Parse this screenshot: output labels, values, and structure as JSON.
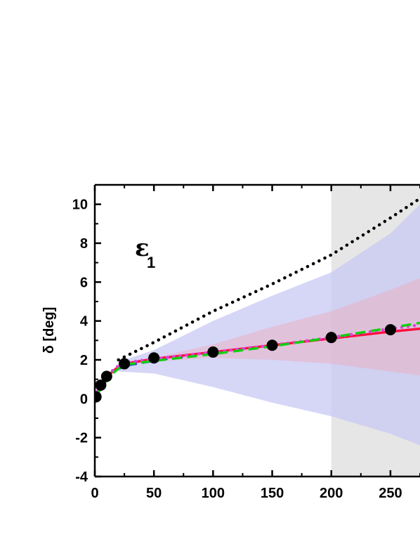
{
  "chart_data": {
    "type": "line",
    "title": "",
    "xlabel": "",
    "ylabel": "δ [deg]",
    "annotation": {
      "symbol": "ε",
      "subscript": "1"
    },
    "xlim": [
      0,
      275
    ],
    "ylim": [
      -4,
      11
    ],
    "x_ticks": [
      0,
      50,
      100,
      150,
      200,
      250
    ],
    "y_ticks": [
      -4,
      -2,
      0,
      2,
      4,
      6,
      8,
      10
    ],
    "x_tick_labels": [
      "0",
      "50",
      "100",
      "150",
      "200",
      "250"
    ],
    "y_tick_labels": [
      "-4",
      "-2",
      "0",
      "2",
      "4",
      "6",
      "8",
      "10"
    ],
    "shaded_region": {
      "x": [
        200,
        275
      ],
      "color": "#e6e6e6"
    },
    "bands": [
      {
        "color": "#c8c8f4",
        "x": [
          20,
          50,
          100,
          150,
          200,
          250,
          275
        ],
        "lower": [
          1.4,
          1.3,
          0.6,
          -0.2,
          -0.9,
          -1.8,
          -2.4
        ],
        "upper": [
          1.9,
          2.5,
          4.0,
          5.3,
          6.5,
          8.5,
          10.0
        ]
      },
      {
        "color": "#e8b4c8",
        "x": [
          20,
          50,
          100,
          150,
          200,
          250,
          275
        ],
        "lower": [
          1.7,
          1.9,
          2.1,
          2.0,
          1.8,
          1.4,
          1.2
        ],
        "upper": [
          1.8,
          2.1,
          2.8,
          3.7,
          4.5,
          5.6,
          6.2
        ]
      }
    ],
    "series": [
      {
        "style": "dotted",
        "color": "#000000",
        "x": [
          20,
          50,
          100,
          150,
          200,
          250,
          275
        ],
        "y": [
          2.0,
          2.9,
          4.5,
          5.9,
          7.4,
          9.3,
          10.3
        ]
      },
      {
        "style": "dashed",
        "color": "#1f3bd6",
        "x": [
          0,
          5,
          10,
          15,
          20,
          30,
          40,
          50,
          60,
          75
        ],
        "y": [
          0.1,
          0.6,
          1.0,
          1.3,
          1.55,
          1.75,
          1.85,
          1.95,
          2.05,
          2.15
        ]
      },
      {
        "style": "solid",
        "color": "#ff1040",
        "x": [
          0,
          5,
          10,
          15,
          20,
          25,
          50,
          100,
          150,
          200,
          250,
          275
        ],
        "y": [
          0.1,
          0.7,
          1.1,
          1.4,
          1.65,
          1.8,
          2.05,
          2.4,
          2.75,
          3.1,
          3.45,
          3.6
        ]
      },
      {
        "style": "dotted",
        "color": "#e040e0",
        "x": [
          0,
          5,
          10,
          15,
          20,
          25,
          50,
          100,
          150,
          200,
          250,
          275
        ],
        "y": [
          0.1,
          0.75,
          1.15,
          1.45,
          1.7,
          1.85,
          2.05,
          2.4,
          2.75,
          3.15,
          3.6,
          3.8
        ]
      },
      {
        "style": "dashed",
        "color": "#10d010",
        "x": [
          0,
          5,
          10,
          15,
          20,
          25,
          50,
          100,
          150,
          200,
          250,
          275
        ],
        "y": [
          0.05,
          0.5,
          0.95,
          1.3,
          1.55,
          1.75,
          1.95,
          2.3,
          2.7,
          3.15,
          3.65,
          3.9
        ]
      }
    ],
    "points": {
      "color": "#000000",
      "x": [
        1,
        5,
        10,
        25,
        50,
        100,
        150,
        200,
        250
      ],
      "y": [
        0.1,
        0.7,
        1.15,
        1.8,
        2.1,
        2.4,
        2.75,
        3.15,
        3.55
      ]
    }
  }
}
